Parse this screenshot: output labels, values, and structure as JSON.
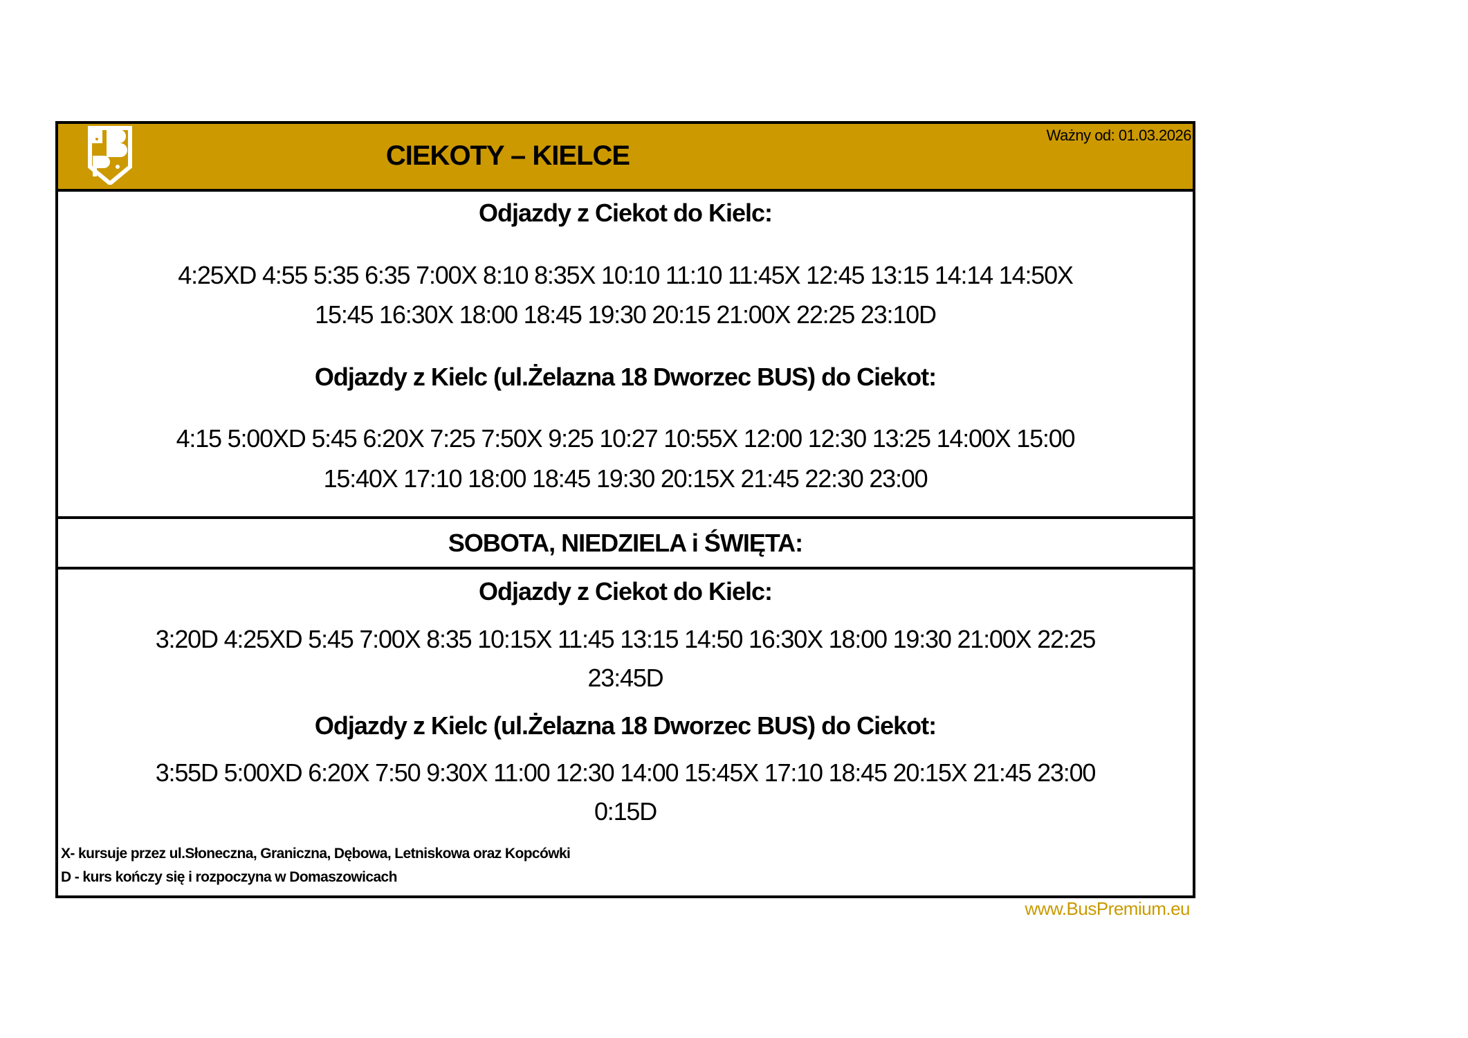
{
  "header": {
    "title": "CIEKOTY – KIELCE",
    "valid_from": "Ważny od: 01.03.2026",
    "logo_text": "BP",
    "header_color": "#cc9900"
  },
  "weekdays": {
    "to_kielce": {
      "heading": "Odjazdy z Ciekot do Kielc:",
      "lines": [
        "4:25XD  4:55 5:35 6:35 7:00X 8:10 8:35X 10:10 11:10 11:45X 12:45 13:15  14:14 14:50X",
        "15:45 16:30X 18:00 18:45 19:30 20:15 21:00X 22:25 23:10D"
      ]
    },
    "to_ciekoty": {
      "heading": "Odjazdy z Kielc (ul.Żelazna 18 Dworzec BUS) do Ciekot:",
      "lines": [
        "4:15 5:00XD 5:45 6:20X 7:25 7:50X 9:25 10:27 10:55X 12:00 12:30 13:25 14:00X 15:00",
        "15:40X 17:10 18:00 18:45 19:30 20:15X 21:45 22:30 23:00"
      ]
    }
  },
  "weekend": {
    "heading": "SOBOTA, NIEDZIELA i ŚWIĘTA:",
    "to_kielce": {
      "heading": "Odjazdy z Ciekot do Kielc:",
      "lines": [
        "3:20D 4:25XD 5:45 7:00X 8:35 10:15X 11:45 13:15 14:50 16:30X 18:00 19:30 21:00X 22:25",
        "23:45D"
      ]
    },
    "to_ciekoty": {
      "heading": "Odjazdy z Kielc (ul.Żelazna 18 Dworzec BUS) do Ciekot:",
      "lines": [
        "3:55D 5:00XD 6:20X 7:50 9:30X 11:00 12:30 14:00 15:45X 17:10 18:45 20:15X 21:45 23:00",
        "0:15D"
      ]
    }
  },
  "notes": [
    "X- kursuje przez ul.Słoneczna, Graniczna, Dębowa, Letniskowa oraz  Kopcówki",
    "D - kurs kończy się i rozpoczyna w Domaszowicach"
  ],
  "website": "www.BusPremium.eu"
}
